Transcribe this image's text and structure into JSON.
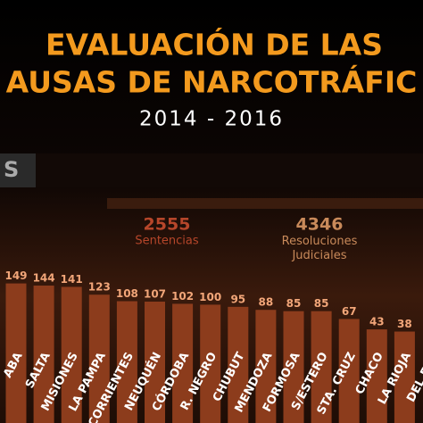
{
  "chart_data": {
    "type": "bar",
    "title": "EVALUACIÓN DE LAS",
    "title_line2": "AUSAS DE NARCOTRÁFIC",
    "subtitle": "2014 - 2016",
    "tab": "S",
    "stats": [
      {
        "value": "2555",
        "label": "Sentencias"
      },
      {
        "value": "4346",
        "label": "Resoluciones Judiciales"
      }
    ],
    "categories": [
      "ABA",
      "SALTA",
      "MISIONES",
      "LA PAMPA",
      "CORRIENTES",
      "NEUQUÉN",
      "CÓRDOBA",
      "R. NEGRO",
      "CHUBUT",
      "MENDOZA",
      "FORMOSA",
      "S/ESTERO",
      "STA. CRUZ",
      "CHACO",
      "LA RIOJA",
      "DEL FUE"
    ],
    "values": [
      149,
      144,
      141,
      123,
      108,
      107,
      102,
      100,
      95,
      88,
      85,
      85,
      67,
      43,
      38,
      null
    ],
    "color": "#8c3c1c",
    "label_color": "#f2a679"
  }
}
